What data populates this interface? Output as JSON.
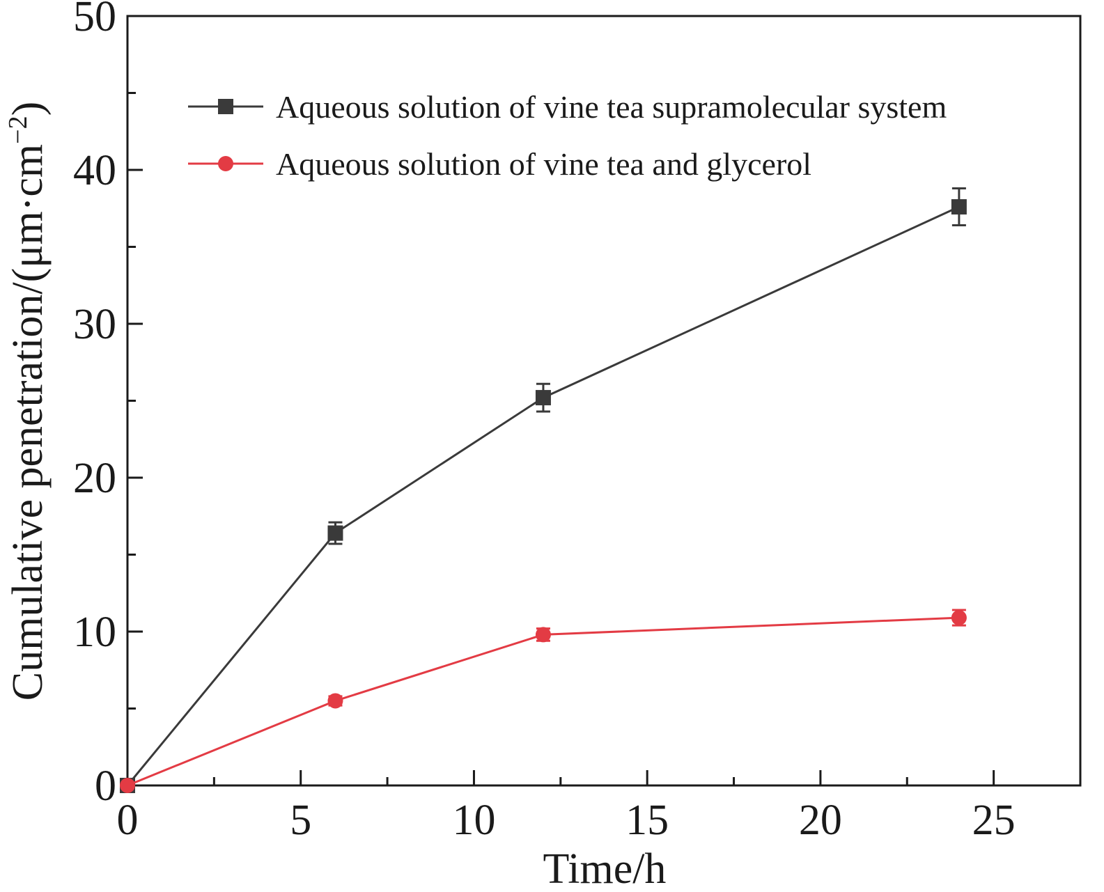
{
  "chart_data": {
    "type": "line",
    "title": "",
    "xlabel": "Time/h",
    "ylabel": "Cumulative penetration/(μm·cm",
    "ylabel_sup": "−2",
    "ylabel_tail": ")",
    "xlim": [
      0,
      27.5
    ],
    "ylim": [
      0,
      50
    ],
    "xticks": [
      0,
      5,
      10,
      15,
      20,
      25
    ],
    "yticks": [
      0,
      10,
      20,
      30,
      40,
      50
    ],
    "x_minor_step": 2.5,
    "y_minor_step": 5,
    "legend_position": "upper-left",
    "grid": false,
    "series": [
      {
        "name": "Aqueous solution of vine tea supramolecular system",
        "color": "#3a3a3a",
        "line_color": "#3a3a3a",
        "marker": "square",
        "x": [
          0,
          6,
          12,
          24
        ],
        "y": [
          0,
          16.4,
          25.2,
          37.6
        ],
        "error": [
          0,
          0.7,
          0.9,
          1.2
        ]
      },
      {
        "name": "Aqueous solution of vine tea and glycerol",
        "color": "#e33b44",
        "line_color": "#e33b44",
        "marker": "circle",
        "x": [
          0,
          6,
          12,
          24
        ],
        "y": [
          0,
          5.5,
          9.8,
          10.9
        ],
        "error": [
          0,
          0.3,
          0.4,
          0.5
        ]
      }
    ]
  }
}
